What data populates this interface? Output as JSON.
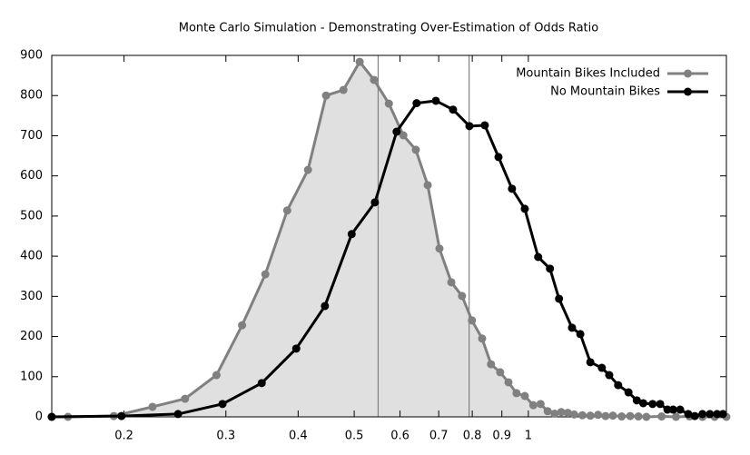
{
  "chart_data": {
    "type": "line",
    "title": "Monte Carlo Simulation - Demonstrating Over-Estimation of Odds Ratio",
    "xscale": "log",
    "xlim": [
      0.15,
      2.2
    ],
    "ylim": [
      0,
      900
    ],
    "xticks": [
      0.2,
      0.3,
      0.4,
      0.5,
      0.6,
      0.7,
      0.8,
      0.9,
      1
    ],
    "yticks": [
      0,
      100,
      200,
      300,
      400,
      500,
      600,
      700,
      800,
      900
    ],
    "vlines": [
      0.55,
      0.79
    ],
    "vline_color": "#808080",
    "legend": "top-right",
    "series": [
      {
        "name": "Mountain Bikes Included",
        "color": "#808080",
        "fill": "#e0e0e0",
        "x": [
          0.15,
          0.16,
          0.192,
          0.224,
          0.255,
          0.289,
          0.32,
          0.351,
          0.383,
          0.416,
          0.447,
          0.479,
          0.511,
          0.541,
          0.574,
          0.608,
          0.639,
          0.67,
          0.702,
          0.736,
          0.768,
          0.799,
          0.832,
          0.862,
          0.894,
          0.924,
          0.954,
          0.986,
          1.02,
          1.05,
          1.08,
          1.11,
          1.14,
          1.17,
          1.2,
          1.24,
          1.28,
          1.32,
          1.36,
          1.4,
          1.45,
          1.5,
          1.55,
          1.6,
          1.7,
          1.8,
          1.9,
          2.0,
          2.1,
          2.2
        ],
        "values": [
          0,
          0,
          2,
          25,
          45,
          104,
          228,
          355,
          514,
          615,
          800,
          814,
          884,
          839,
          780,
          701,
          665,
          577,
          419,
          335,
          301,
          240,
          195,
          131,
          111,
          86,
          59,
          52,
          29,
          32,
          14,
          8,
          12,
          10,
          6,
          4,
          3,
          5,
          2,
          3,
          1,
          2,
          1,
          0,
          1,
          0,
          1,
          0,
          0,
          0
        ]
      },
      {
        "name": "No Mountain Bikes",
        "color": "#000000",
        "x": [
          0.15,
          0.198,
          0.248,
          0.296,
          0.346,
          0.397,
          0.445,
          0.495,
          0.543,
          0.592,
          0.641,
          0.692,
          0.741,
          0.791,
          0.841,
          0.888,
          0.937,
          0.986,
          1.04,
          1.09,
          1.13,
          1.19,
          1.23,
          1.28,
          1.34,
          1.38,
          1.43,
          1.49,
          1.54,
          1.58,
          1.64,
          1.69,
          1.74,
          1.78,
          1.83,
          1.89,
          1.94,
          2.0,
          2.06,
          2.12,
          2.17
        ],
        "values": [
          0,
          2,
          7,
          32,
          84,
          170,
          276,
          455,
          534,
          710,
          781,
          787,
          765,
          724,
          726,
          647,
          568,
          518,
          398,
          369,
          294,
          222,
          206,
          136,
          122,
          104,
          79,
          61,
          41,
          34,
          32,
          32,
          18,
          18,
          18,
          7,
          2,
          7,
          7,
          7,
          7
        ]
      }
    ]
  }
}
